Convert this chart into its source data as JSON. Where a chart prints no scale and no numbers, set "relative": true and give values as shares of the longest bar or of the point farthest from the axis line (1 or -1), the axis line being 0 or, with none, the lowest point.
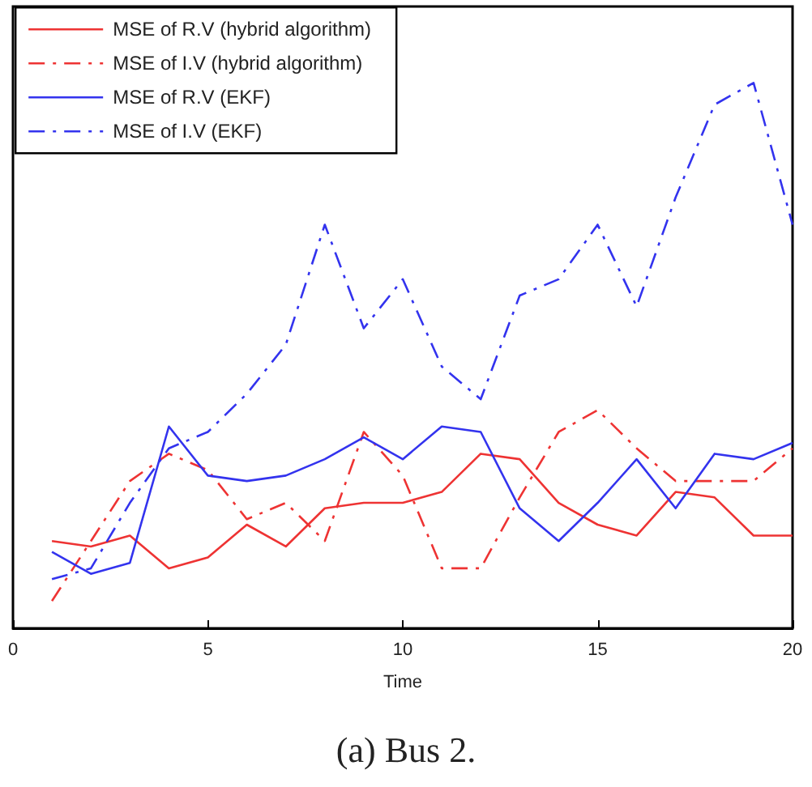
{
  "chart_data": {
    "type": "line",
    "relative": true,
    "xlabel": "Time",
    "xlim": [
      0,
      20
    ],
    "xticks": [
      0,
      5,
      10,
      15,
      20
    ],
    "legend": "top left",
    "grid": false,
    "marker": "none",
    "annotations": [
      "(a) Bus 2."
    ],
    "x": [
      1,
      2,
      3,
      4,
      5,
      6,
      7,
      8,
      9,
      10,
      11,
      12,
      13,
      14,
      15,
      16,
      17,
      18,
      19,
      20
    ],
    "series": [
      {
        "name": "MSE of R.V (hybrid algorithm)",
        "color": "#ee3333",
        "line_style": "solid",
        "values": [
          0.16,
          0.15,
          0.17,
          0.11,
          0.13,
          0.19,
          0.15,
          0.22,
          0.23,
          0.23,
          0.25,
          0.32,
          0.31,
          0.23,
          0.19,
          0.17,
          0.25,
          0.24,
          0.17,
          0.17
        ]
      },
      {
        "name": "MSE of I.V (hybrid algorithm)",
        "color": "#ee3333",
        "line_style": "dashed",
        "values": [
          0.05,
          0.16,
          0.27,
          0.32,
          0.29,
          0.2,
          0.23,
          0.16,
          0.36,
          0.28,
          0.11,
          0.11,
          0.24,
          0.36,
          0.4,
          0.33,
          0.27,
          0.27,
          0.27,
          0.33
        ]
      },
      {
        "name": "MSE of R.V (EKF)",
        "color": "#3333ee",
        "line_style": "solid",
        "values": [
          0.14,
          0.1,
          0.12,
          0.37,
          0.28,
          0.27,
          0.28,
          0.31,
          0.35,
          0.31,
          0.37,
          0.36,
          0.22,
          0.16,
          0.23,
          0.31,
          0.22,
          0.32,
          0.31,
          0.34
        ]
      },
      {
        "name": "MSE of I.V (EKF)",
        "color": "#3333ee",
        "line_style": "dashed",
        "values": [
          0.09,
          0.11,
          0.23,
          0.33,
          0.36,
          0.43,
          0.52,
          0.74,
          0.55,
          0.64,
          0.48,
          0.42,
          0.61,
          0.64,
          0.74,
          0.59,
          0.79,
          0.96,
          1,
          0.74
        ]
      }
    ]
  }
}
